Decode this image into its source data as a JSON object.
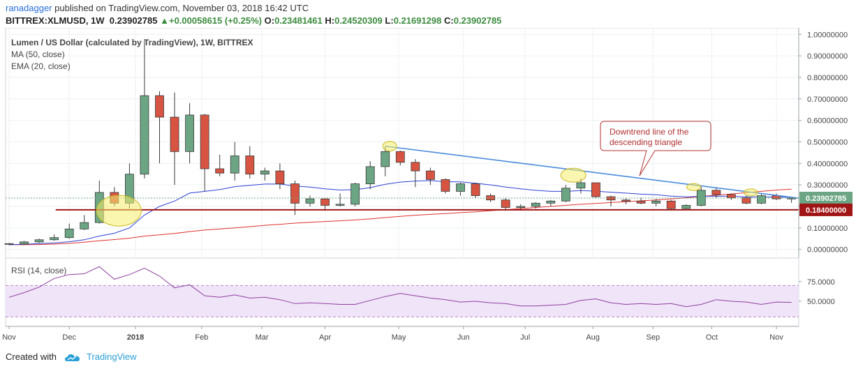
{
  "header": {
    "publisher": "ranadagger",
    "published_text": "published on TradingView.com, November 03, 2018 16:42 UTC",
    "symbol_line_prefix": "BITTREX:XLMUSD, 1W",
    "last_price": "0.23902785",
    "change_arrow": "▲",
    "change": "+0.00058615 (+0.25%)",
    "ohlc": {
      "o_label": "O:",
      "o": "0.23481461",
      "h_label": "H:",
      "h": "0.24520309",
      "l_label": "L:",
      "l": "0.21691298",
      "c_label": "C:",
      "c": "0.23902785"
    }
  },
  "legend": {
    "title": "Lumen / US Dollar (calculated by TradingView), 1W, BITTREX",
    "ma": "MA (50, close)",
    "ema": "EMA (20, close)"
  },
  "rsi_label": "RSI (14, close)",
  "annotation": {
    "text_lines": [
      "Downtrend line of the",
      "descending triangle"
    ]
  },
  "footer": {
    "created_with": "Created with",
    "brand": "TradingView"
  },
  "colors": {
    "up": "#6ba583",
    "down": "#d75442",
    "ma": "#2c3fd4",
    "ema": "#e03030",
    "trendline": "#4a8bdc",
    "support": "#a01515",
    "rsi": "#8e3fa0",
    "rsi_band": "#f0e4f8",
    "highlight": "#f5ef6f",
    "price_tag": "#6ba583"
  },
  "chart_data": {
    "type": "candlestick",
    "x_tick_labels": [
      "Nov",
      "Dec",
      "2018",
      "Feb",
      "Mar",
      "Apr",
      "May",
      "Jun",
      "Jul",
      "Aug",
      "Sep",
      "Oct",
      "Nov"
    ],
    "y_ticks": [
      "0.00000000",
      "0.10000000",
      "0.20000000",
      "0.30000000",
      "0.40000000",
      "0.50000000",
      "0.60000000",
      "0.70000000",
      "0.80000000",
      "0.90000000",
      "1.00000000"
    ],
    "y_tick_values": [
      0,
      0.1,
      0.2,
      0.3,
      0.4,
      0.5,
      0.6,
      0.7,
      0.8,
      0.9,
      1.0
    ],
    "ylim": [
      -0.04,
      1.03
    ],
    "current_price_label": "0.23902785",
    "current_price": 0.239,
    "support_label": "0.18400000",
    "support": 0.184,
    "rsi_ticks": [
      "75.0000",
      "50.0000"
    ],
    "rsi_tick_values": [
      75,
      50
    ],
    "rsi_band": [
      70,
      30
    ],
    "rsi_ylim": [
      18,
      105
    ],
    "candles": [
      {
        "o": 0.025,
        "h": 0.03,
        "l": 0.02,
        "c": 0.027
      },
      {
        "o": 0.025,
        "h": 0.04,
        "l": 0.024,
        "c": 0.035
      },
      {
        "o": 0.035,
        "h": 0.05,
        "l": 0.03,
        "c": 0.045
      },
      {
        "o": 0.045,
        "h": 0.07,
        "l": 0.04,
        "c": 0.055
      },
      {
        "o": 0.055,
        "h": 0.12,
        "l": 0.05,
        "c": 0.095
      },
      {
        "o": 0.095,
        "h": 0.16,
        "l": 0.09,
        "c": 0.125
      },
      {
        "o": 0.125,
        "h": 0.32,
        "l": 0.12,
        "c": 0.265
      },
      {
        "o": 0.265,
        "h": 0.29,
        "l": 0.2,
        "c": 0.215
      },
      {
        "o": 0.215,
        "h": 0.4,
        "l": 0.19,
        "c": 0.35
      },
      {
        "o": 0.35,
        "h": 0.97,
        "l": 0.33,
        "c": 0.715
      },
      {
        "o": 0.715,
        "h": 0.735,
        "l": 0.4,
        "c": 0.615
      },
      {
        "o": 0.615,
        "h": 0.73,
        "l": 0.3,
        "c": 0.455
      },
      {
        "o": 0.455,
        "h": 0.68,
        "l": 0.4,
        "c": 0.625
      },
      {
        "o": 0.625,
        "h": 0.63,
        "l": 0.27,
        "c": 0.375
      },
      {
        "o": 0.375,
        "h": 0.44,
        "l": 0.34,
        "c": 0.355
      },
      {
        "o": 0.355,
        "h": 0.5,
        "l": 0.32,
        "c": 0.435
      },
      {
        "o": 0.435,
        "h": 0.48,
        "l": 0.33,
        "c": 0.35
      },
      {
        "o": 0.35,
        "h": 0.38,
        "l": 0.32,
        "c": 0.365
      },
      {
        "o": 0.365,
        "h": 0.4,
        "l": 0.28,
        "c": 0.305
      },
      {
        "o": 0.305,
        "h": 0.32,
        "l": 0.16,
        "c": 0.215
      },
      {
        "o": 0.215,
        "h": 0.25,
        "l": 0.2,
        "c": 0.235
      },
      {
        "o": 0.235,
        "h": 0.24,
        "l": 0.18,
        "c": 0.205
      },
      {
        "o": 0.205,
        "h": 0.26,
        "l": 0.2,
        "c": 0.21
      },
      {
        "o": 0.21,
        "h": 0.31,
        "l": 0.2,
        "c": 0.305
      },
      {
        "o": 0.305,
        "h": 0.41,
        "l": 0.28,
        "c": 0.385
      },
      {
        "o": 0.385,
        "h": 0.48,
        "l": 0.34,
        "c": 0.455
      },
      {
        "o": 0.455,
        "h": 0.46,
        "l": 0.39,
        "c": 0.405
      },
      {
        "o": 0.405,
        "h": 0.42,
        "l": 0.29,
        "c": 0.365
      },
      {
        "o": 0.365,
        "h": 0.38,
        "l": 0.3,
        "c": 0.325
      },
      {
        "o": 0.325,
        "h": 0.33,
        "l": 0.26,
        "c": 0.27
      },
      {
        "o": 0.27,
        "h": 0.31,
        "l": 0.25,
        "c": 0.305
      },
      {
        "o": 0.305,
        "h": 0.31,
        "l": 0.24,
        "c": 0.25
      },
      {
        "o": 0.25,
        "h": 0.26,
        "l": 0.22,
        "c": 0.23
      },
      {
        "o": 0.23,
        "h": 0.24,
        "l": 0.18,
        "c": 0.195
      },
      {
        "o": 0.195,
        "h": 0.21,
        "l": 0.18,
        "c": 0.2
      },
      {
        "o": 0.2,
        "h": 0.22,
        "l": 0.19,
        "c": 0.215
      },
      {
        "o": 0.215,
        "h": 0.23,
        "l": 0.2,
        "c": 0.225
      },
      {
        "o": 0.225,
        "h": 0.3,
        "l": 0.22,
        "c": 0.285
      },
      {
        "o": 0.285,
        "h": 0.33,
        "l": 0.26,
        "c": 0.31
      },
      {
        "o": 0.31,
        "h": 0.31,
        "l": 0.24,
        "c": 0.245
      },
      {
        "o": 0.245,
        "h": 0.25,
        "l": 0.2,
        "c": 0.23
      },
      {
        "o": 0.23,
        "h": 0.24,
        "l": 0.21,
        "c": 0.225
      },
      {
        "o": 0.225,
        "h": 0.24,
        "l": 0.21,
        "c": 0.215
      },
      {
        "o": 0.215,
        "h": 0.235,
        "l": 0.2,
        "c": 0.225
      },
      {
        "o": 0.225,
        "h": 0.23,
        "l": 0.185,
        "c": 0.19
      },
      {
        "o": 0.19,
        "h": 0.21,
        "l": 0.185,
        "c": 0.205
      },
      {
        "o": 0.205,
        "h": 0.29,
        "l": 0.2,
        "c": 0.275
      },
      {
        "o": 0.275,
        "h": 0.29,
        "l": 0.24,
        "c": 0.255
      },
      {
        "o": 0.255,
        "h": 0.26,
        "l": 0.23,
        "c": 0.24
      },
      {
        "o": 0.24,
        "h": 0.25,
        "l": 0.21,
        "c": 0.215
      },
      {
        "o": 0.215,
        "h": 0.26,
        "l": 0.21,
        "c": 0.25
      },
      {
        "o": 0.25,
        "h": 0.26,
        "l": 0.23,
        "c": 0.235
      },
      {
        "o": 0.2348,
        "h": 0.2452,
        "l": 0.2169,
        "c": 0.239
      }
    ],
    "ma50": [
      0.022,
      0.022,
      0.023,
      0.025,
      0.028,
      0.034,
      0.04,
      0.046,
      0.052,
      0.062,
      0.068,
      0.074,
      0.083,
      0.09,
      0.095,
      0.1,
      0.106,
      0.112,
      0.117,
      0.122,
      0.126,
      0.13,
      0.133,
      0.137,
      0.142,
      0.148,
      0.154,
      0.159,
      0.163,
      0.167,
      0.171,
      0.175,
      0.18,
      0.185,
      0.19,
      0.195,
      0.2,
      0.205,
      0.21,
      0.214,
      0.218,
      0.222,
      0.226,
      0.23,
      0.235,
      0.24,
      0.246,
      0.252,
      0.258,
      0.264,
      0.27,
      0.276,
      0.28
    ],
    "ema20": [
      0.022,
      0.024,
      0.027,
      0.03,
      0.036,
      0.045,
      0.062,
      0.075,
      0.1,
      0.16,
      0.2,
      0.225,
      0.262,
      0.27,
      0.278,
      0.292,
      0.298,
      0.304,
      0.304,
      0.295,
      0.29,
      0.282,
      0.276,
      0.278,
      0.287,
      0.303,
      0.313,
      0.318,
      0.32,
      0.315,
      0.314,
      0.308,
      0.3,
      0.29,
      0.282,
      0.275,
      0.27,
      0.27,
      0.274,
      0.271,
      0.266,
      0.262,
      0.257,
      0.254,
      0.248,
      0.244,
      0.247,
      0.248,
      0.247,
      0.244,
      0.244,
      0.243,
      0.243
    ],
    "rsi": [
      55,
      61,
      68,
      79,
      84,
      85,
      94,
      78,
      84,
      92,
      82,
      67,
      71,
      57,
      55,
      58,
      54,
      55,
      52,
      47,
      48,
      47,
      46,
      46,
      51,
      56,
      60,
      57,
      54,
      52,
      49,
      50,
      48,
      47,
      44,
      44,
      45,
      46,
      51,
      53,
      48,
      46,
      47,
      46,
      47,
      43,
      46,
      52,
      50,
      49,
      46,
      49,
      48.5
    ],
    "trendline": {
      "start_index": 25,
      "start_value": 0.48,
      "end_index": 52.5,
      "end_value": 0.238
    },
    "annotation_points": [
      {
        "index": 7.3,
        "value": 0.18
      },
      {
        "index": 25.3,
        "value": 0.48
      },
      {
        "index": 37.5,
        "value": 0.345
      },
      {
        "index": 45.5,
        "value": 0.29
      },
      {
        "index": 49.3,
        "value": 0.265
      }
    ]
  }
}
